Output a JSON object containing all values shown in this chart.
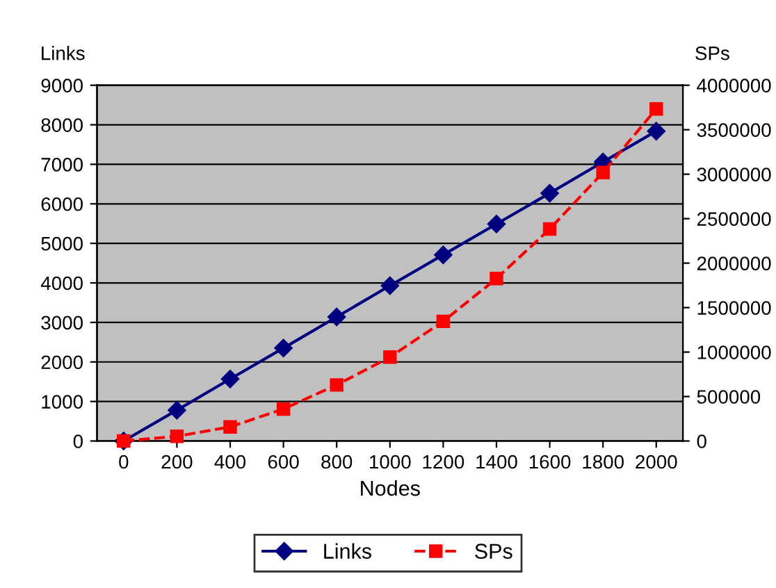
{
  "chart_data": {
    "type": "line",
    "xlabel": "Nodes",
    "ylabel": "Links",
    "y2label": "SPs",
    "categories": [
      "0",
      "200",
      "400",
      "600",
      "800",
      "1000",
      "1200",
      "1400",
      "1600",
      "1800",
      "2000"
    ],
    "series": [
      {
        "name": "Links",
        "color": "#000080",
        "marker": "diamond",
        "line_style": "solid",
        "values": [
          0,
          780,
          1570,
          2350,
          3140,
          3930,
          4710,
          5490,
          6270,
          7060,
          7840
        ]
      },
      {
        "name": "SPs",
        "color": "#ff0000",
        "marker": "square",
        "line_style": "dashed",
        "axis": "y2",
        "values": [
          0,
          53000,
          159000,
          360000,
          630000,
          943000,
          1345000,
          1827000,
          2383000,
          3019000,
          3734000
        ]
      }
    ],
    "ylim": [
      0,
      9000
    ],
    "yticks": [
      0,
      1000,
      2000,
      3000,
      4000,
      5000,
      6000,
      7000,
      8000,
      9000
    ],
    "y2lim": [
      0,
      4000000
    ],
    "y2ticks": [
      0,
      500000,
      1000000,
      1500000,
      2000000,
      2500000,
      3000000,
      3500000,
      4000000
    ],
    "grid": "y",
    "legend": "bottom"
  }
}
